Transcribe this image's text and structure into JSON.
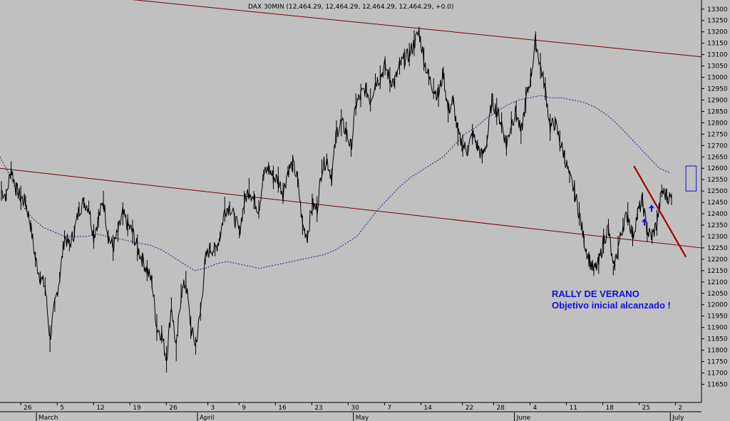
{
  "header": {
    "title": "DAX 30MIN (12,464.29, 12,464.29, 12,464.29, 12,464.29, +0.0)"
  },
  "annotation": {
    "line1": "RALLY DE VERANO",
    "line2": "Objetivo inicial alcanzado !"
  },
  "colors": {
    "background": "#c0c0c0",
    "price": "#000000",
    "channel": "#7a0000",
    "trend": "#a00000",
    "ma": "#1c1c8c",
    "annotation": "#1010e0",
    "target_box": "#1010e0"
  },
  "chart_data": {
    "type": "line",
    "title": "DAX 30MIN (12,464.29, 12,464.29, 12,464.29, 12,464.29, +0.0)",
    "xlabel": "",
    "ylabel": "",
    "ylim": [
      11570,
      13340
    ],
    "yticks": [
      11650,
      11700,
      11750,
      11800,
      11850,
      11900,
      11950,
      12000,
      12050,
      12100,
      12150,
      12200,
      12250,
      12300,
      12350,
      12400,
      12450,
      12500,
      12550,
      12600,
      12650,
      12700,
      12750,
      12800,
      12850,
      12900,
      12950,
      13000,
      13050,
      13100,
      13150,
      13200,
      13250,
      13300
    ],
    "x_day_ticks": [
      "26",
      "5",
      "12",
      "19",
      "26",
      "3",
      "9",
      "16",
      "23",
      "30",
      "7",
      "14",
      "22",
      "28",
      "4",
      "11",
      "18",
      "25",
      "2"
    ],
    "x_month_labels": [
      "March",
      "April",
      "May",
      "June",
      "July"
    ],
    "series": [
      {
        "values": [
          12500,
          12480,
          12600,
          12510,
          12470,
          12450,
          12350,
          12200,
          12120,
          12080,
          11850,
          12000,
          12120,
          12300,
          12260,
          12320,
          12420,
          12450,
          12430,
          12300,
          12380,
          12460,
          12300,
          12250,
          12320,
          12400,
          12350,
          12320,
          12250,
          12200,
          12150,
          12100,
          11900,
          11870,
          11760,
          12000,
          11800,
          12050,
          12100,
          11900,
          11820,
          11970,
          12200,
          12250,
          12240,
          12300,
          12420,
          12430,
          12380,
          12320,
          12450,
          12510,
          12460,
          12420,
          12570,
          12600,
          12560,
          12550,
          12490,
          12590,
          12620,
          12550,
          12350,
          12300,
          12440,
          12420,
          12600,
          12640,
          12560,
          12760,
          12800,
          12760,
          12690,
          12880,
          12920,
          12950,
          12900,
          12980,
          13000,
          13050,
          12990,
          12980,
          13050,
          13080,
          13100,
          13150,
          13200,
          13080,
          13000,
          12950,
          12920,
          13020,
          12850,
          12900,
          12750,
          12700,
          12680,
          12750,
          12700,
          12650,
          12720,
          12900,
          12850,
          12800,
          12700,
          12800,
          12850,
          12750,
          12900,
          13000,
          13160,
          13050,
          12950,
          12780,
          12800,
          12720,
          12650,
          12560,
          12500,
          12400,
          12280,
          12200,
          12150,
          12180,
          12280,
          12340,
          12150,
          12250,
          12350,
          12400,
          12300,
          12400,
          12460,
          12320,
          12300,
          12360,
          12500,
          12480,
          12464
        ]
      },
      {
        "name": "",
        "values": [
          12650,
          12560,
          12440,
          12380,
          12340,
          12320,
          12300,
          12300,
          12300,
          12310,
          12300,
          12290,
          12280,
          12270,
          12260,
          12240,
          12210,
          12180,
          12150,
          12160,
          12180,
          12190,
          12180,
          12170,
          12160,
          12170,
          12180,
          12190,
          12200,
          12210,
          12220,
          12240,
          12270,
          12300,
          12360,
          12420,
          12470,
          12520,
          12560,
          12590,
          12620,
          12650,
          12700,
          12750,
          12780,
          12820,
          12850,
          12880,
          12900,
          12910,
          12920,
          12910,
          12910,
          12900,
          12890,
          12870,
          12840,
          12800,
          12750,
          12700,
          12650,
          12600,
          12580
        ]
      }
    ],
    "lines": [
      {
        "name": "",
        "from": [
          "2017-02-22",
          13400
        ],
        "to": [
          "2017-07-07",
          13090
        ]
      },
      {
        "name": "",
        "from": [
          "2017-02-22",
          12600
        ],
        "to": [
          "2017-07-07",
          12250
        ]
      },
      {
        "name": "",
        "from": [
          "2017-06-24",
          12610
        ],
        "to": [
          "2017-07-04",
          12210
        ]
      }
    ],
    "target_box": {
      "from": [
        "2017-07-04",
        12500
      ],
      "to": [
        "2017-07-06",
        12610
      ]
    },
    "arrows_at": [
      12380,
      12440
    ]
  }
}
